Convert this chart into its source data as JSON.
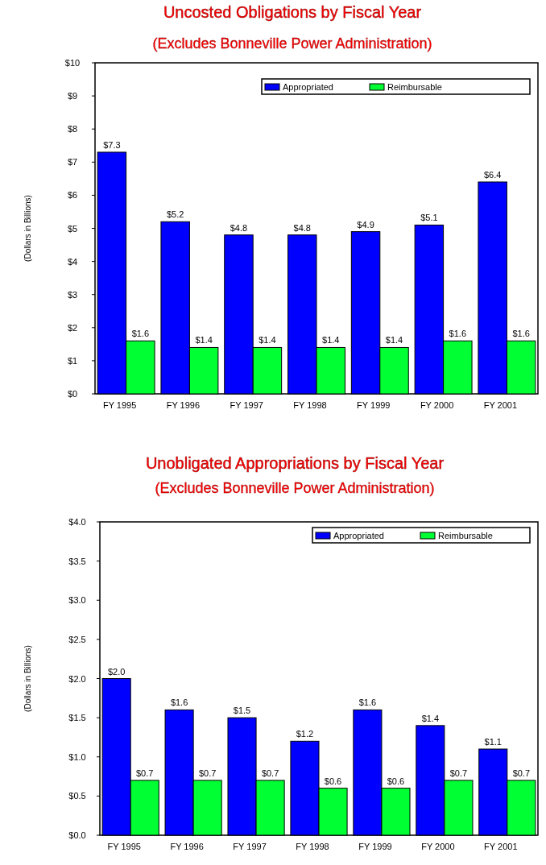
{
  "chart_data": [
    {
      "type": "bar",
      "title": "Uncosted Obligations by Fiscal Year",
      "subtitle": "(Excludes Bonneville Power Administration)",
      "ylabel": "(Dollars in Billions)",
      "categories": [
        "FY 1995",
        "FY 1996",
        "FY 1997",
        "FY 1998",
        "FY 1999",
        "FY 2000",
        "FY 2001"
      ],
      "series": [
        {
          "name": "Appropriated",
          "color": "#0000ff",
          "values": [
            7.3,
            5.2,
            4.8,
            4.8,
            4.9,
            5.1,
            6.4
          ]
        },
        {
          "name": "Reimbursable",
          "color": "#00ff33",
          "values": [
            1.6,
            1.4,
            1.4,
            1.4,
            1.4,
            1.6,
            1.6
          ]
        }
      ],
      "ylim": [
        0,
        10
      ],
      "yticks": [
        {
          "value": 0,
          "label": "$0"
        },
        {
          "value": 1,
          "label": "$1"
        },
        {
          "value": 2,
          "label": "$2"
        },
        {
          "value": 3,
          "label": "$3"
        },
        {
          "value": 4,
          "label": "$4"
        },
        {
          "value": 5,
          "label": "$5"
        },
        {
          "value": 6,
          "label": "$6"
        },
        {
          "value": 7,
          "label": "$7"
        },
        {
          "value": 8,
          "label": "$8"
        },
        {
          "value": 9,
          "label": "$9"
        },
        {
          "value": 10,
          "label": "$10"
        }
      ],
      "value_labels": [
        [
          "$7.3",
          "$5.2",
          "$4.8",
          "$4.8",
          "$4.9",
          "$5.1",
          "$6.4"
        ],
        [
          "$1.6",
          "$1.4",
          "$1.4",
          "$1.4",
          "$1.4",
          "$1.6",
          "$1.6"
        ]
      ],
      "legend": "top right",
      "grid": false
    },
    {
      "type": "bar",
      "title": "Unobligated Appropriations by Fiscal Year",
      "subtitle": "(Excludes Bonneville Power Administration)",
      "ylabel": "(Dollars in Billions)",
      "categories": [
        "FY 1995",
        "FY 1996",
        "FY 1997",
        "FY 1998",
        "FY 1999",
        "FY 2000",
        "FY 2001"
      ],
      "series": [
        {
          "name": "Appropriated",
          "color": "#0000ff",
          "values": [
            2.0,
            1.6,
            1.5,
            1.2,
            1.6,
            1.4,
            1.1
          ]
        },
        {
          "name": "Reimbursable",
          "color": "#00ff33",
          "values": [
            0.7,
            0.7,
            0.7,
            0.6,
            0.6,
            0.7,
            0.7
          ]
        }
      ],
      "ylim": [
        0,
        4
      ],
      "yticks": [
        {
          "value": 0,
          "label": "$0.0"
        },
        {
          "value": 0.5,
          "label": "$0.5"
        },
        {
          "value": 1,
          "label": "$1.0"
        },
        {
          "value": 1.5,
          "label": "$1.5"
        },
        {
          "value": 2,
          "label": "$2.0"
        },
        {
          "value": 2.5,
          "label": "$2.5"
        },
        {
          "value": 3,
          "label": "$3.0"
        },
        {
          "value": 3.5,
          "label": "$3.5"
        },
        {
          "value": 4,
          "label": "$4.0"
        }
      ],
      "value_labels": [
        [
          "$2.0",
          "$1.6",
          "$1.5",
          "$1.2",
          "$1.6",
          "$1.4",
          "$1.1"
        ],
        [
          "$0.7",
          "$0.7",
          "$0.7",
          "$0.6",
          "$0.6",
          "$0.7",
          "$0.7"
        ]
      ],
      "legend": "top right",
      "grid": false
    }
  ]
}
